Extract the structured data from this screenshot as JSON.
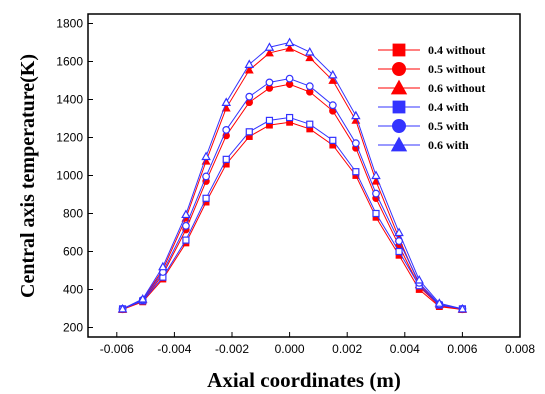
{
  "chart_data": {
    "type": "line",
    "title": "",
    "xlabel": "Axial coordinates (m)",
    "ylabel": "Central axis temperature(K)",
    "xlim": [
      -0.007,
      0.008
    ],
    "ylim": [
      150,
      1850
    ],
    "xticks": [
      -0.006,
      -0.004,
      -0.002,
      0.0,
      0.002,
      0.004,
      0.006,
      0.008
    ],
    "xtick_labels": [
      "-0.006",
      "-0.004",
      "-0.002",
      "0.000",
      "0.002",
      "0.004",
      "0.006",
      "0.008"
    ],
    "yticks": [
      200,
      400,
      600,
      800,
      1000,
      1200,
      1400,
      1600,
      1800
    ],
    "ytick_labels": [
      "200",
      "400",
      "600",
      "800",
      "1000",
      "1200",
      "1400",
      "1600",
      "1800"
    ],
    "grid": false,
    "legend_position": "top-right",
    "x": [
      -0.0058,
      -0.0051,
      -0.0044,
      -0.0036,
      -0.0029,
      -0.0022,
      -0.0014,
      -0.0007,
      0.0,
      0.0007,
      0.0015,
      0.0023,
      0.003,
      0.0038,
      0.0045,
      0.0052,
      0.006
    ],
    "series": [
      {
        "name": "0.4 without",
        "color": "#ff0000",
        "marker": "square",
        "values": [
          295,
          335,
          455,
          645,
          860,
          1060,
          1205,
          1265,
          1280,
          1245,
          1160,
          1000,
          780,
          580,
          400,
          310,
          295
        ]
      },
      {
        "name": "0.5 without",
        "color": "#ff0000",
        "marker": "circle",
        "values": [
          295,
          340,
          480,
          715,
          970,
          1210,
          1385,
          1460,
          1480,
          1440,
          1340,
          1145,
          880,
          630,
          415,
          315,
          295
        ]
      },
      {
        "name": "0.6 without",
        "color": "#ff0000",
        "marker": "triangle",
        "values": [
          295,
          345,
          505,
          775,
          1075,
          1355,
          1555,
          1645,
          1670,
          1620,
          1500,
          1290,
          970,
          670,
          425,
          320,
          295
        ]
      },
      {
        "name": "0.4 with",
        "color": "#3333ff",
        "marker": "square",
        "values": [
          298,
          340,
          465,
          660,
          880,
          1085,
          1230,
          1290,
          1305,
          1270,
          1185,
          1020,
          800,
          600,
          420,
          318,
          298
        ]
      },
      {
        "name": "0.5 with",
        "color": "#3333ff",
        "marker": "circle",
        "values": [
          298,
          345,
          492,
          735,
          995,
          1240,
          1415,
          1490,
          1510,
          1470,
          1370,
          1170,
          905,
          655,
          435,
          322,
          298
        ]
      },
      {
        "name": "0.6 with",
        "color": "#3333ff",
        "marker": "triangle",
        "values": [
          298,
          350,
          520,
          795,
          1100,
          1385,
          1585,
          1675,
          1700,
          1650,
          1530,
          1315,
          1000,
          700,
          450,
          328,
          298
        ]
      }
    ]
  }
}
